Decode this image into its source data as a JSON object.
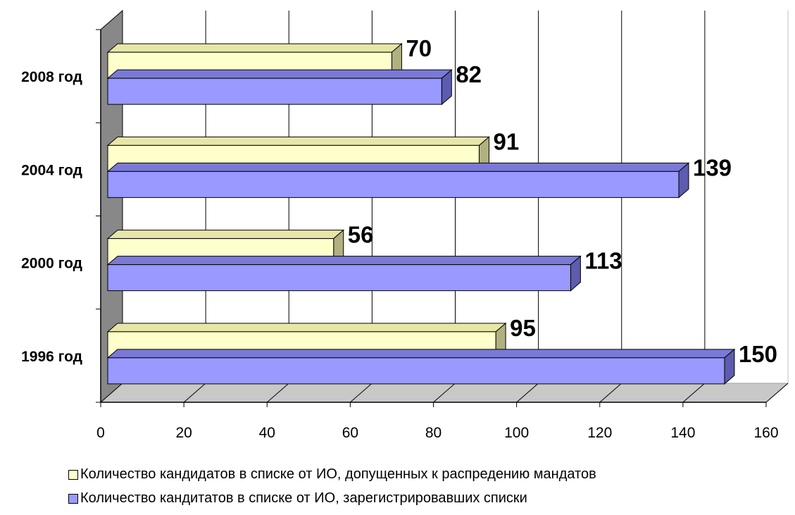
{
  "chart_data": {
    "type": "bar",
    "orientation": "horizontal",
    "style": "3d",
    "categories": [
      "1996 год",
      "2000 год",
      "2004 год",
      "2008 год"
    ],
    "series": [
      {
        "name": "Количество кандидатов в списке от ИО, допущенных к распредению мандатов",
        "values": [
          95,
          56,
          91,
          70
        ],
        "color": "#ffffcc"
      },
      {
        "name": "Количество кандитатов в списке от ИО, зарегистрировавших списки",
        "values": [
          150,
          113,
          139,
          82
        ],
        "color": "#9999ff"
      }
    ],
    "xlim": [
      0,
      160
    ],
    "xticks": [
      0,
      20,
      40,
      60,
      80,
      100,
      120,
      140,
      160
    ],
    "grid": true,
    "legend_position": "bottom",
    "title": "",
    "xlabel": "",
    "ylabel": ""
  }
}
